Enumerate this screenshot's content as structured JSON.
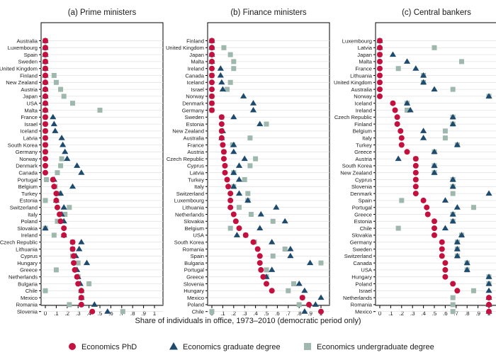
{
  "figure": {
    "xlabel": "Share of individuals in office, 1973–2010 (democratic period only)",
    "legend": [
      {
        "key": "phd",
        "label": "Economics PhD",
        "shape": "circle",
        "color": "#c4103f"
      },
      {
        "key": "grad",
        "label": "Economics graduate degree",
        "shape": "triangle",
        "color": "#1e4a6e"
      },
      {
        "key": "ugrad",
        "label": "Economics undergraduate degree",
        "shape": "square",
        "color": "#9fb8ae"
      }
    ],
    "legend_position": "bottom"
  },
  "chart_data": [
    {
      "type": "scatter",
      "title": "(a) Prime ministers",
      "xlim": [
        0,
        1
      ],
      "xticks": [
        "0",
        ".1",
        ".2",
        ".3",
        ".4",
        ".5",
        ".6",
        ".7",
        ".8",
        ".9",
        "1"
      ],
      "grid": "horizontal",
      "categories": [
        "Australia",
        "Luxembourg",
        "Spain",
        "Sweden",
        "United Kingdom",
        "Finland",
        "New Zealand",
        "Austria",
        "Japan",
        "USA",
        "Malta",
        "France",
        "Israel",
        "Iceland",
        "Latvia",
        "South Korea",
        "Germany",
        "Norway",
        "Denmark",
        "Canada",
        "Portugal",
        "Belgium",
        "Turkey",
        "Estonia",
        "Switzerland",
        "Italy",
        "Poland",
        "Slovakia",
        "Ireland",
        "Czech Republic",
        "Lithuania",
        "Cyprus",
        "Hungary",
        "Greece",
        "Netherlands",
        "Bulgaria",
        "Chile",
        "Mexico",
        "Romania",
        "Slovenia"
      ],
      "series": [
        {
          "key": "phd",
          "values": [
            0,
            0,
            0,
            0,
            0,
            0,
            0,
            0,
            0,
            0,
            0,
            0,
            0,
            0,
            0,
            0,
            0,
            0,
            0,
            0,
            0.07,
            0.08,
            0.1,
            0.1,
            0.11,
            0.13,
            0.14,
            0.17,
            0.17,
            0.25,
            0.25,
            0.26,
            0.26,
            0.27,
            0.29,
            0.3,
            0.33,
            0.33,
            0.33,
            0.43
          ]
        },
        {
          "key": "grad",
          "values": [
            0,
            0,
            0,
            0,
            0,
            0,
            0,
            0,
            0,
            0,
            0,
            0.07,
            0.08,
            0.09,
            0.15,
            0.16,
            0.18,
            0.2,
            0.29,
            0.33,
            0.08,
            0.25,
            0.14,
            0.1,
            0.17,
            0.15,
            0.17,
            0,
            0.17,
            0.33,
            0.31,
            0.28,
            0.38,
            0.29,
            0.3,
            0.32,
            0.33,
            0.33,
            0.45,
            0.57
          ]
        },
        {
          "key": "ugrad",
          "values": [
            0,
            0,
            0,
            0,
            0,
            0.08,
            0.1,
            0.14,
            0.17,
            0.25,
            0.5,
            0,
            0,
            0,
            0,
            0,
            0,
            0.15,
            0.14,
            0.11,
            0.01,
            0.09,
            0.13,
            0,
            0.22,
            0.18,
            0.11,
            0,
            0.08,
            0.25,
            0.25,
            0.25,
            0.3,
            0.1,
            0.3,
            0.4,
            0,
            0.33,
            0.22,
            0.71
          ]
        }
      ]
    },
    {
      "type": "scatter",
      "title": "(b) Finance ministers",
      "xlim": [
        0,
        1
      ],
      "xticks": [
        "0",
        ".1",
        ".2",
        ".3",
        ".4",
        ".5",
        ".6",
        ".7",
        ".8",
        ".9",
        "1"
      ],
      "grid": "horizontal",
      "categories": [
        "Finland",
        "United Kingdom",
        "Japan",
        "Malta",
        "Ireland",
        "Canada",
        "Iceland",
        "Israel",
        "Norway",
        "Denmark",
        "Germany",
        "Sweden",
        "Estonia",
        "New Zealand",
        "Australia",
        "France",
        "Austria",
        "Czech Republic",
        "Cyprus",
        "Latvia",
        "Turkey",
        "Italy",
        "Switzerland",
        "Luxembourg",
        "Lithuania",
        "Netherlands",
        "Slovakia",
        "Belgium",
        "USA",
        "South Korea",
        "Romania",
        "Spain",
        "Bulgaria",
        "Portugal",
        "Greece",
        "Slovenia",
        "Hungary",
        "Mexico",
        "Poland",
        "Chile"
      ],
      "series": [
        {
          "key": "phd",
          "values": [
            0,
            0,
            0,
            0,
            0,
            0,
            0,
            0,
            0,
            0,
            0,
            0.09,
            0.09,
            0.09,
            0.09,
            0.1,
            0.11,
            0.11,
            0.12,
            0.12,
            0.14,
            0.15,
            0.17,
            0.17,
            0.17,
            0.2,
            0.22,
            0.25,
            0.31,
            0.38,
            0.42,
            0.44,
            0.44,
            0.45,
            0.47,
            0.5,
            0.55,
            0.83,
            0.89,
            1.0
          ]
        },
        {
          "key": "grad",
          "values": [
            0,
            0,
            0,
            0,
            0.08,
            0.08,
            0.09,
            0.1,
            0.29,
            0.38,
            0.38,
            0.2,
            0.44,
            0.1,
            0.09,
            0.2,
            0.2,
            0.3,
            0.25,
            0.2,
            0.25,
            0.2,
            0.25,
            0.33,
            0.59,
            0.45,
            0.67,
            0.44,
            0.23,
            0.55,
            0.72,
            0.72,
            0.9,
            0.55,
            0.5,
            0.8,
            0.85,
            1.0,
            0.95,
            0.85
          ]
        },
        {
          "key": "ugrad",
          "values": [
            0,
            0.11,
            0.17,
            0.2,
            0.2,
            0,
            0.17,
            0.14,
            0,
            0,
            0,
            0.09,
            0.5,
            0.09,
            0.35,
            0.19,
            0.11,
            0.4,
            0.35,
            0.2,
            0.3,
            0.2,
            0.33,
            0.33,
            0.25,
            0.36,
            0.56,
            0.17,
            0.31,
            0.39,
            0.67,
            0.56,
            1.0,
            0.5,
            0.5,
            0.75,
            0.7,
            0.83,
            0.8,
            0
          ]
        }
      ]
    },
    {
      "type": "scatter",
      "title": "(c) Central bankers",
      "xlim": [
        0,
        1
      ],
      "xticks": [
        "0",
        ".1",
        ".2",
        ".3",
        ".4",
        ".5",
        ".6",
        ".7",
        ".8",
        ".9",
        "1"
      ],
      "grid": "horizontal",
      "categories": [
        "Luxembourg",
        "Latvia",
        "Japan",
        "Malta",
        "France",
        "Lithuania",
        "United Kingdom",
        "Australia",
        "Norway",
        "Iceland",
        "Ireland",
        "Czech Republic",
        "Finland",
        "Belgium",
        "Italy",
        "Turkey",
        "Greece",
        "Austria",
        "South Korea",
        "New Zealand",
        "Cyprus",
        "Slovenia",
        "Denmark",
        "Spain",
        "Portugal",
        "Greece",
        "Estonia",
        "Chile",
        "Slovakia",
        "Germany",
        "Sweden",
        "Switzerland",
        "Canada",
        "USA",
        "Hungary",
        "Poland",
        "Israel",
        "Netherlands",
        "Romania",
        "Mexico"
      ],
      "series": [
        {
          "key": "phd",
          "values": [
            0,
            0,
            0,
            0,
            0,
            0,
            0,
            0,
            0,
            0.12,
            0.14,
            0.16,
            0.16,
            0.19,
            0.2,
            0.2,
            0.25,
            0.33,
            0.33,
            0.33,
            0.33,
            0.33,
            0.33,
            0.4,
            0.43,
            0.44,
            0.5,
            0.5,
            0.5,
            0.57,
            0.57,
            0.57,
            0.6,
            0.6,
            0.6,
            0.67,
            0.71,
            1.0,
            1.0,
            1.0
          ]
        },
        {
          "key": "grad",
          "values": [
            0,
            0,
            0.12,
            0.25,
            0.33,
            0.4,
            0.4,
            0.5,
            1.0,
            0.25,
            0.28,
            0.67,
            0.67,
            0.4,
            0.4,
            0.71,
            0.5,
            0.17,
            0.5,
            0.5,
            0.67,
            0.67,
            1.0,
            0.6,
            0.71,
            0.67,
            0.67,
            0.6,
            0.75,
            0.71,
            0.71,
            0.71,
            0.8,
            0.8,
            1.0,
            1.0,
            1.0,
            1.0,
            1.0,
            1.0
          ]
        },
        {
          "key": "ugrad",
          "values": [
            0,
            0.5,
            0,
            0.75,
            0.17,
            0.4,
            0.4,
            0.67,
            1.0,
            0.25,
            0.25,
            0.67,
            0.67,
            0.6,
            0.6,
            0.71,
            0.5,
            0.33,
            0.5,
            0.5,
            0.67,
            0.67,
            0.67,
            0.2,
            0.86,
            0.67,
            0.67,
            0.17,
            0.75,
            0.71,
            0.71,
            0.71,
            0.8,
            0.8,
            1.0,
            1.0,
            0.86,
            0.67,
            0.67,
            0.67
          ]
        }
      ]
    }
  ]
}
